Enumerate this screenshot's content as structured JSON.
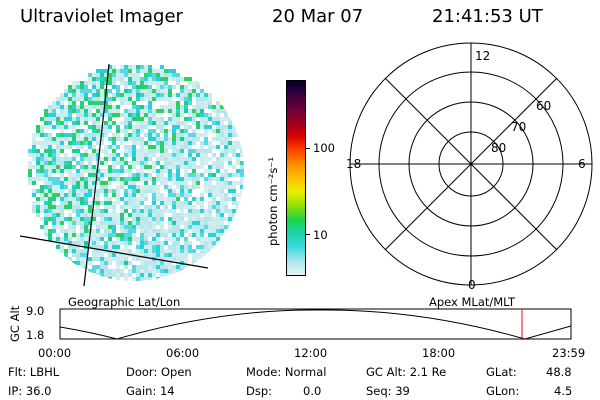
{
  "header": {
    "title": "Ultraviolet Imager",
    "date": "20 Mar 07",
    "time": "21:41:53 UT"
  },
  "colorbar": {
    "unit_label": "photon cm⁻²s⁻¹",
    "tick_100": "100",
    "tick_10": "10",
    "stops": [
      "#000033",
      "#3a0040",
      "#6a003a",
      "#9a001e",
      "#d80000",
      "#ff4400",
      "#ff8c00",
      "#ffc000",
      "#e8f000",
      "#90e000",
      "#1fd34a",
      "#19d3a8",
      "#40d8e0",
      "#a8e8ec",
      "#e8f4f4"
    ]
  },
  "image_panel": {
    "caption": "Geographic Lat/Lon",
    "pixel_colors": [
      "#b8e6ea",
      "#c8ecee",
      "#d2eef0",
      "#58d8e0",
      "#2ed0d8",
      "#22cc88",
      "#30d060",
      "#a0e0e8"
    ]
  },
  "polar_plot": {
    "caption": "Apex MLat/MLT",
    "mlt_top": "12",
    "mlt_left": "18",
    "mlt_right": "6",
    "mlt_bottom": "0",
    "lat_60": "60",
    "lat_70": "70",
    "lat_80": "80"
  },
  "altitude_plot": {
    "ylabel": "GC Alt",
    "y_max": "9.0",
    "y_min": "1.8",
    "x_labels": [
      "00:00",
      "06:00",
      "12:00",
      "18:00",
      "23:59"
    ],
    "marker_color": "#ff0000"
  },
  "status": {
    "flt": "Flt: LBHL",
    "ip": "IP: 36.0",
    "door": "Door: Open",
    "gain": "Gain: 14",
    "mode": "Mode: Normal",
    "dsp_label": "Dsp:",
    "dsp_value": "0.0",
    "gc_alt": "GC Alt: 2.1 Re",
    "seq": "Seq: 39",
    "glat_label": "GLat:",
    "glat_value": "48.8",
    "glon_label": "GLon:",
    "glon_value": "4.5"
  }
}
